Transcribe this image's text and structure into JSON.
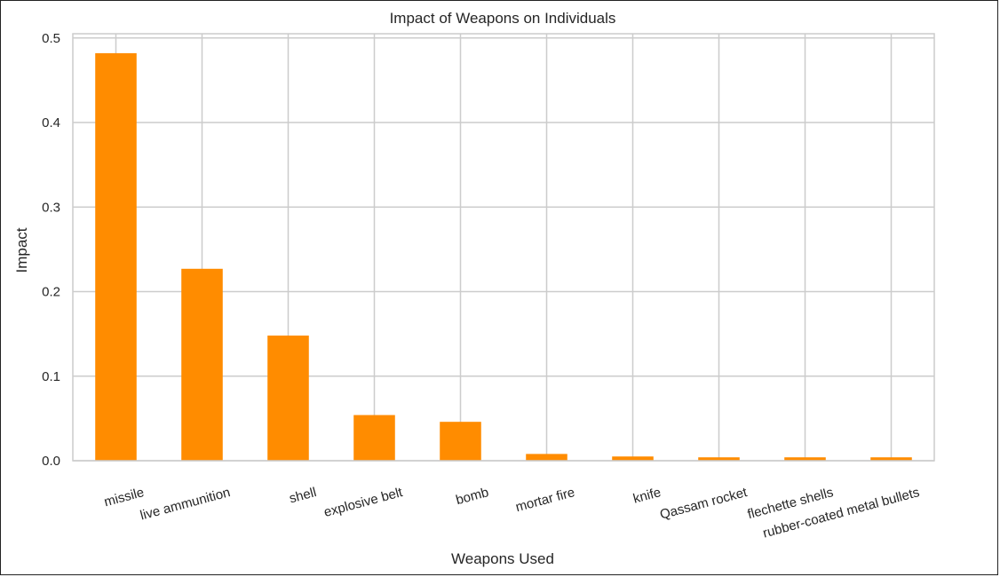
{
  "chart_data": {
    "type": "bar",
    "title": "Impact of Weapons on Individuals",
    "xlabel": "Weapons Used",
    "ylabel": "Impact",
    "categories": [
      "missile",
      "live ammunition",
      "shell",
      "explosive belt",
      "bomb",
      "mortar fire",
      "knife",
      "Qassam rocket",
      "flechette shells",
      "rubber-coated metal bullets"
    ],
    "values": [
      0.482,
      0.227,
      0.148,
      0.054,
      0.046,
      0.008,
      0.005,
      0.004,
      0.004,
      0.004
    ],
    "ylim": [
      0,
      0.505
    ],
    "yticks": [
      "0.0",
      "0.1",
      "0.2",
      "0.3",
      "0.4",
      "0.5"
    ],
    "grid": true,
    "bar_color": "#ff8c00",
    "grid_color": "#cccccc"
  }
}
